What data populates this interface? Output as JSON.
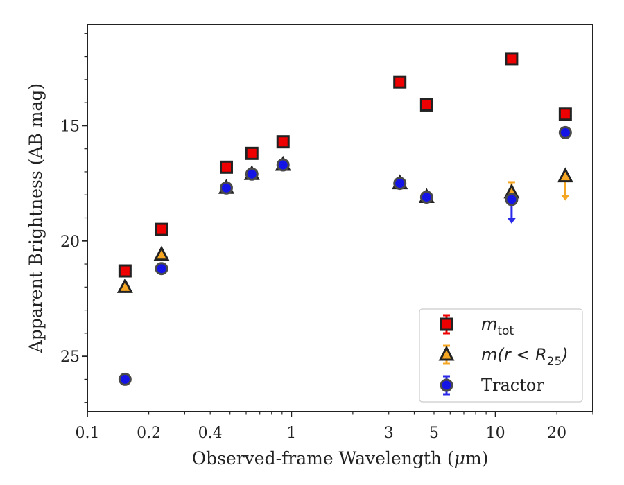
{
  "chart_data": {
    "type": "scatter",
    "xlabel_parts": [
      "Observed-frame Wavelength (",
      "μ",
      "m)"
    ],
    "ylabel": "Apparent Brightness (AB mag)",
    "x_scale": "log",
    "xlim": [
      0.1,
      30
    ],
    "ylim": [
      27.4,
      10.6
    ],
    "y_inverted": true,
    "x_ticks": [
      {
        "value": 0.1,
        "label": "0.1"
      },
      {
        "value": 0.2,
        "label": "0.2"
      },
      {
        "value": 0.4,
        "label": "0.4"
      },
      {
        "value": 1,
        "label": "1"
      },
      {
        "value": 3,
        "label": "3"
      },
      {
        "value": 5,
        "label": "5"
      },
      {
        "value": 10,
        "label": "10"
      },
      {
        "value": 20,
        "label": "20"
      }
    ],
    "y_ticks": [
      {
        "value": 15,
        "label": "15"
      },
      {
        "value": 20,
        "label": "20"
      },
      {
        "value": 25,
        "label": "25"
      }
    ],
    "grid": false,
    "legend_position": "lower-right",
    "series": [
      {
        "key": "mtot",
        "marker": "square",
        "face_color": "#ee0000",
        "edge_color": "#222222",
        "error_color": "#ee0000",
        "points": [
          {
            "x": 0.153,
            "y": 21.3
          },
          {
            "x": 0.231,
            "y": 19.5
          },
          {
            "x": 0.48,
            "y": 16.8
          },
          {
            "x": 0.64,
            "y": 16.2
          },
          {
            "x": 0.91,
            "y": 15.7
          },
          {
            "x": 3.4,
            "y": 13.1
          },
          {
            "x": 4.6,
            "y": 14.1
          },
          {
            "x": 12.0,
            "y": 12.1
          },
          {
            "x": 22.0,
            "y": 14.5
          }
        ]
      },
      {
        "key": "mr25",
        "marker": "triangle",
        "face_color": "#f5a623",
        "edge_color": "#222222",
        "error_color": "#f5a623",
        "points": [
          {
            "x": 0.153,
            "y": 22.0
          },
          {
            "x": 0.231,
            "y": 20.6
          },
          {
            "x": 0.48,
            "y": 17.7
          },
          {
            "x": 0.64,
            "y": 17.1
          },
          {
            "x": 0.91,
            "y": 16.7
          },
          {
            "x": 3.4,
            "y": 17.5
          },
          {
            "x": 4.6,
            "y": 18.1
          },
          {
            "x": 12.0,
            "y": 17.9,
            "err": 0.45
          },
          {
            "x": 22.0,
            "y": 17.2,
            "upper_limit": true
          }
        ]
      },
      {
        "key": "tractor",
        "name": "Tractor",
        "marker": "circle",
        "face_color": "#1414e6",
        "edge_color": "#4a4a4a",
        "error_color": "#2a2ae8",
        "points": [
          {
            "x": 0.153,
            "y": 26.0
          },
          {
            "x": 0.231,
            "y": 21.2
          },
          {
            "x": 0.48,
            "y": 17.7
          },
          {
            "x": 0.64,
            "y": 17.1
          },
          {
            "x": 0.91,
            "y": 16.7
          },
          {
            "x": 3.4,
            "y": 17.5
          },
          {
            "x": 4.6,
            "y": 18.1
          },
          {
            "x": 12.0,
            "y": 18.2,
            "upper_limit": true
          },
          {
            "x": 22.0,
            "y": 15.3
          }
        ]
      }
    ],
    "legend": [
      {
        "key": "mtot",
        "label_base": "m",
        "label_sub": "tot"
      },
      {
        "key": "mr25",
        "label_base": "m(r < R",
        "label_sub": "25",
        "label_end": ")"
      },
      {
        "key": "tractor",
        "label": "Tractor"
      }
    ]
  }
}
